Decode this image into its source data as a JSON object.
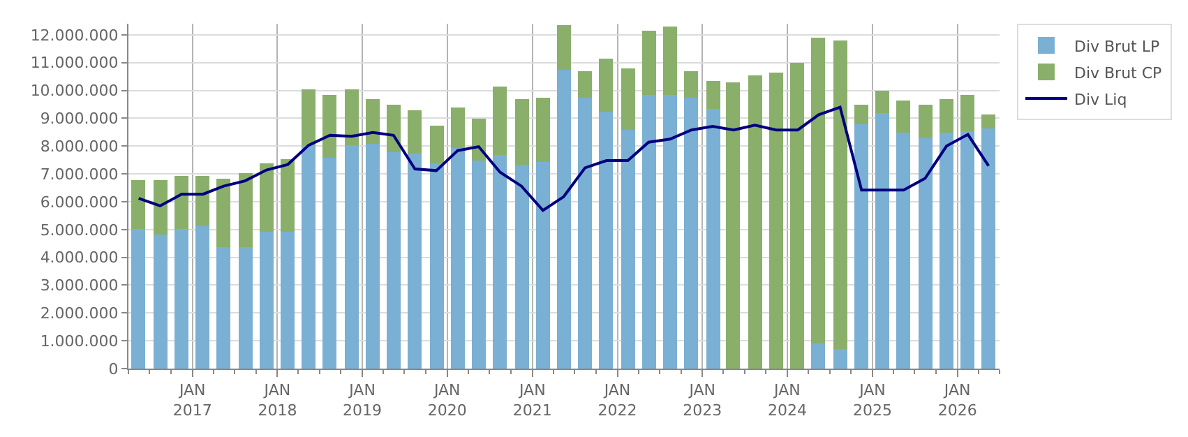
{
  "chart_data": {
    "type": "bar",
    "stacked": true,
    "grid": true,
    "legend": "top right",
    "x": [
      "2016-05-15",
      "2016-08-15",
      "2016-11-15",
      "2017-02-15",
      "2017-05-15",
      "2017-08-15",
      "2017-11-15",
      "2018-02-15",
      "2018-05-15",
      "2018-08-15",
      "2018-11-15",
      "2019-02-15",
      "2019-05-15",
      "2019-08-15",
      "2019-11-15",
      "2020-02-15",
      "2020-05-15",
      "2020-08-15",
      "2020-11-15",
      "2021-02-15",
      "2021-05-15",
      "2021-08-15",
      "2021-11-15",
      "2022-02-15",
      "2022-05-15",
      "2022-08-15",
      "2022-11-15",
      "2023-02-15",
      "2023-05-15",
      "2023-08-15",
      "2023-11-15",
      "2024-02-15",
      "2024-05-15",
      "2024-08-15",
      "2024-11-15",
      "2025-02-15",
      "2025-05-15",
      "2025-08-15",
      "2025-11-15",
      "2026-02-15",
      "2026-05-15"
    ],
    "series": [
      {
        "name": "Div Brut LP",
        "color": "#7ab0d4",
        "values": [
          5020000,
          4820000,
          5000000,
          5130000,
          4380000,
          4380000,
          4940000,
          4940000,
          8030000,
          7580000,
          8030000,
          8090000,
          7760000,
          7720000,
          7370000,
          7950000,
          7480000,
          7670000,
          7340000,
          7440000,
          10730000,
          9740000,
          9220000,
          8560000,
          9840000,
          9840000,
          9740000,
          9320000,
          0,
          0,
          0,
          0,
          890000,
          710000,
          8800000,
          9180000,
          8490000,
          8300000,
          8490000,
          8520000,
          8660000
        ]
      },
      {
        "name": "Div Brut CP",
        "color": "#8aaf6a",
        "values": [
          1760000,
          1960000,
          1920000,
          1790000,
          2440000,
          2630000,
          2450000,
          2590000,
          1990000,
          2260000,
          1990000,
          1600000,
          1750000,
          1550000,
          1380000,
          1460000,
          1510000,
          2490000,
          2350000,
          2300000,
          1600000,
          940000,
          1930000,
          2220000,
          2300000,
          2440000,
          940000,
          1030000,
          10310000,
          10540000,
          10640000,
          11010000,
          11020000,
          11100000,
          710000,
          800000,
          1160000,
          1210000,
          1200000,
          1320000,
          470000
        ]
      },
      {
        "name": "Div Liq",
        "type": "line",
        "color": "#000080",
        "values": [
          6120000,
          5850000,
          6270000,
          6270000,
          6560000,
          6750000,
          7140000,
          7340000,
          8030000,
          8390000,
          8350000,
          8490000,
          8390000,
          7180000,
          7120000,
          7840000,
          7980000,
          7060000,
          6560000,
          5690000,
          6180000,
          7220000,
          7480000,
          7480000,
          8140000,
          8250000,
          8580000,
          8710000,
          8580000,
          8750000,
          8580000,
          8580000,
          9130000,
          9400000,
          6420000,
          6420000,
          6420000,
          6840000,
          8000000,
          8420000,
          7290000
        ]
      }
    ],
    "xlim": [
      "2016-04-01",
      "2026-07-01"
    ],
    "xticks": [
      {
        "value": "2017-01-01",
        "label": "JAN\n2017"
      },
      {
        "value": "2018-01-01",
        "label": "JAN\n2018"
      },
      {
        "value": "2019-01-01",
        "label": "JAN\n2019"
      },
      {
        "value": "2020-01-01",
        "label": "JAN\n2020"
      },
      {
        "value": "2021-01-01",
        "label": "JAN\n2021"
      },
      {
        "value": "2022-01-01",
        "label": "JAN\n2022"
      },
      {
        "value": "2023-01-01",
        "label": "JAN\n2023"
      },
      {
        "value": "2024-01-01",
        "label": "JAN\n2024"
      },
      {
        "value": "2025-01-01",
        "label": "JAN\n2025"
      },
      {
        "value": "2026-01-01",
        "label": "JAN\n2026"
      }
    ],
    "ylim": [
      0,
      12400000
    ],
    "yticks": [
      0,
      {
        "value": 1000000,
        "label": "1.000.000"
      },
      {
        "value": 2000000,
        "label": "2.000.000"
      },
      {
        "value": 3000000,
        "label": "3.000.000"
      },
      {
        "value": 4000000,
        "label": "4.000.000"
      },
      {
        "value": 5000000,
        "label": "5.000.000"
      },
      {
        "value": 6000000,
        "label": "6.000.000"
      },
      {
        "value": 7000000,
        "label": "7.000.000"
      },
      {
        "value": 8000000,
        "label": "8.000.000"
      },
      {
        "value": 9000000,
        "label": "9.000.000"
      },
      {
        "value": 10000000,
        "label": "10.000.000"
      },
      {
        "value": 11000000,
        "label": "11.000.000"
      },
      {
        "value": 12000000,
        "label": "12.000.000"
      }
    ]
  }
}
